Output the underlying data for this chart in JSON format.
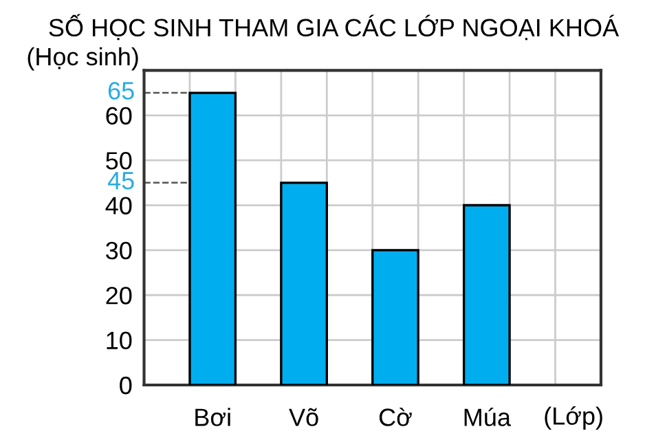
{
  "chart_data": {
    "type": "bar",
    "title": "SỐ HỌC SINH THAM GIA CÁC LỚP NGOẠI KHOÁ",
    "ylabel": "(Học sinh)",
    "xlabel": "(Lớp)",
    "categories": [
      "Bơi",
      "Võ",
      "Cờ",
      "Múa"
    ],
    "values": [
      65,
      45,
      30,
      40
    ],
    "color": "#00aeef",
    "ylim": [
      0,
      70
    ],
    "yticks": [
      0,
      10,
      20,
      30,
      40,
      50,
      60
    ],
    "grid": true,
    "ref_lines": [
      {
        "axis": "y",
        "value": 65,
        "label": "65",
        "color": "#555555",
        "line_style": "dashed"
      },
      {
        "axis": "y",
        "value": 45,
        "label": "45",
        "color": "#555555",
        "line_style": "dashed"
      }
    ]
  }
}
